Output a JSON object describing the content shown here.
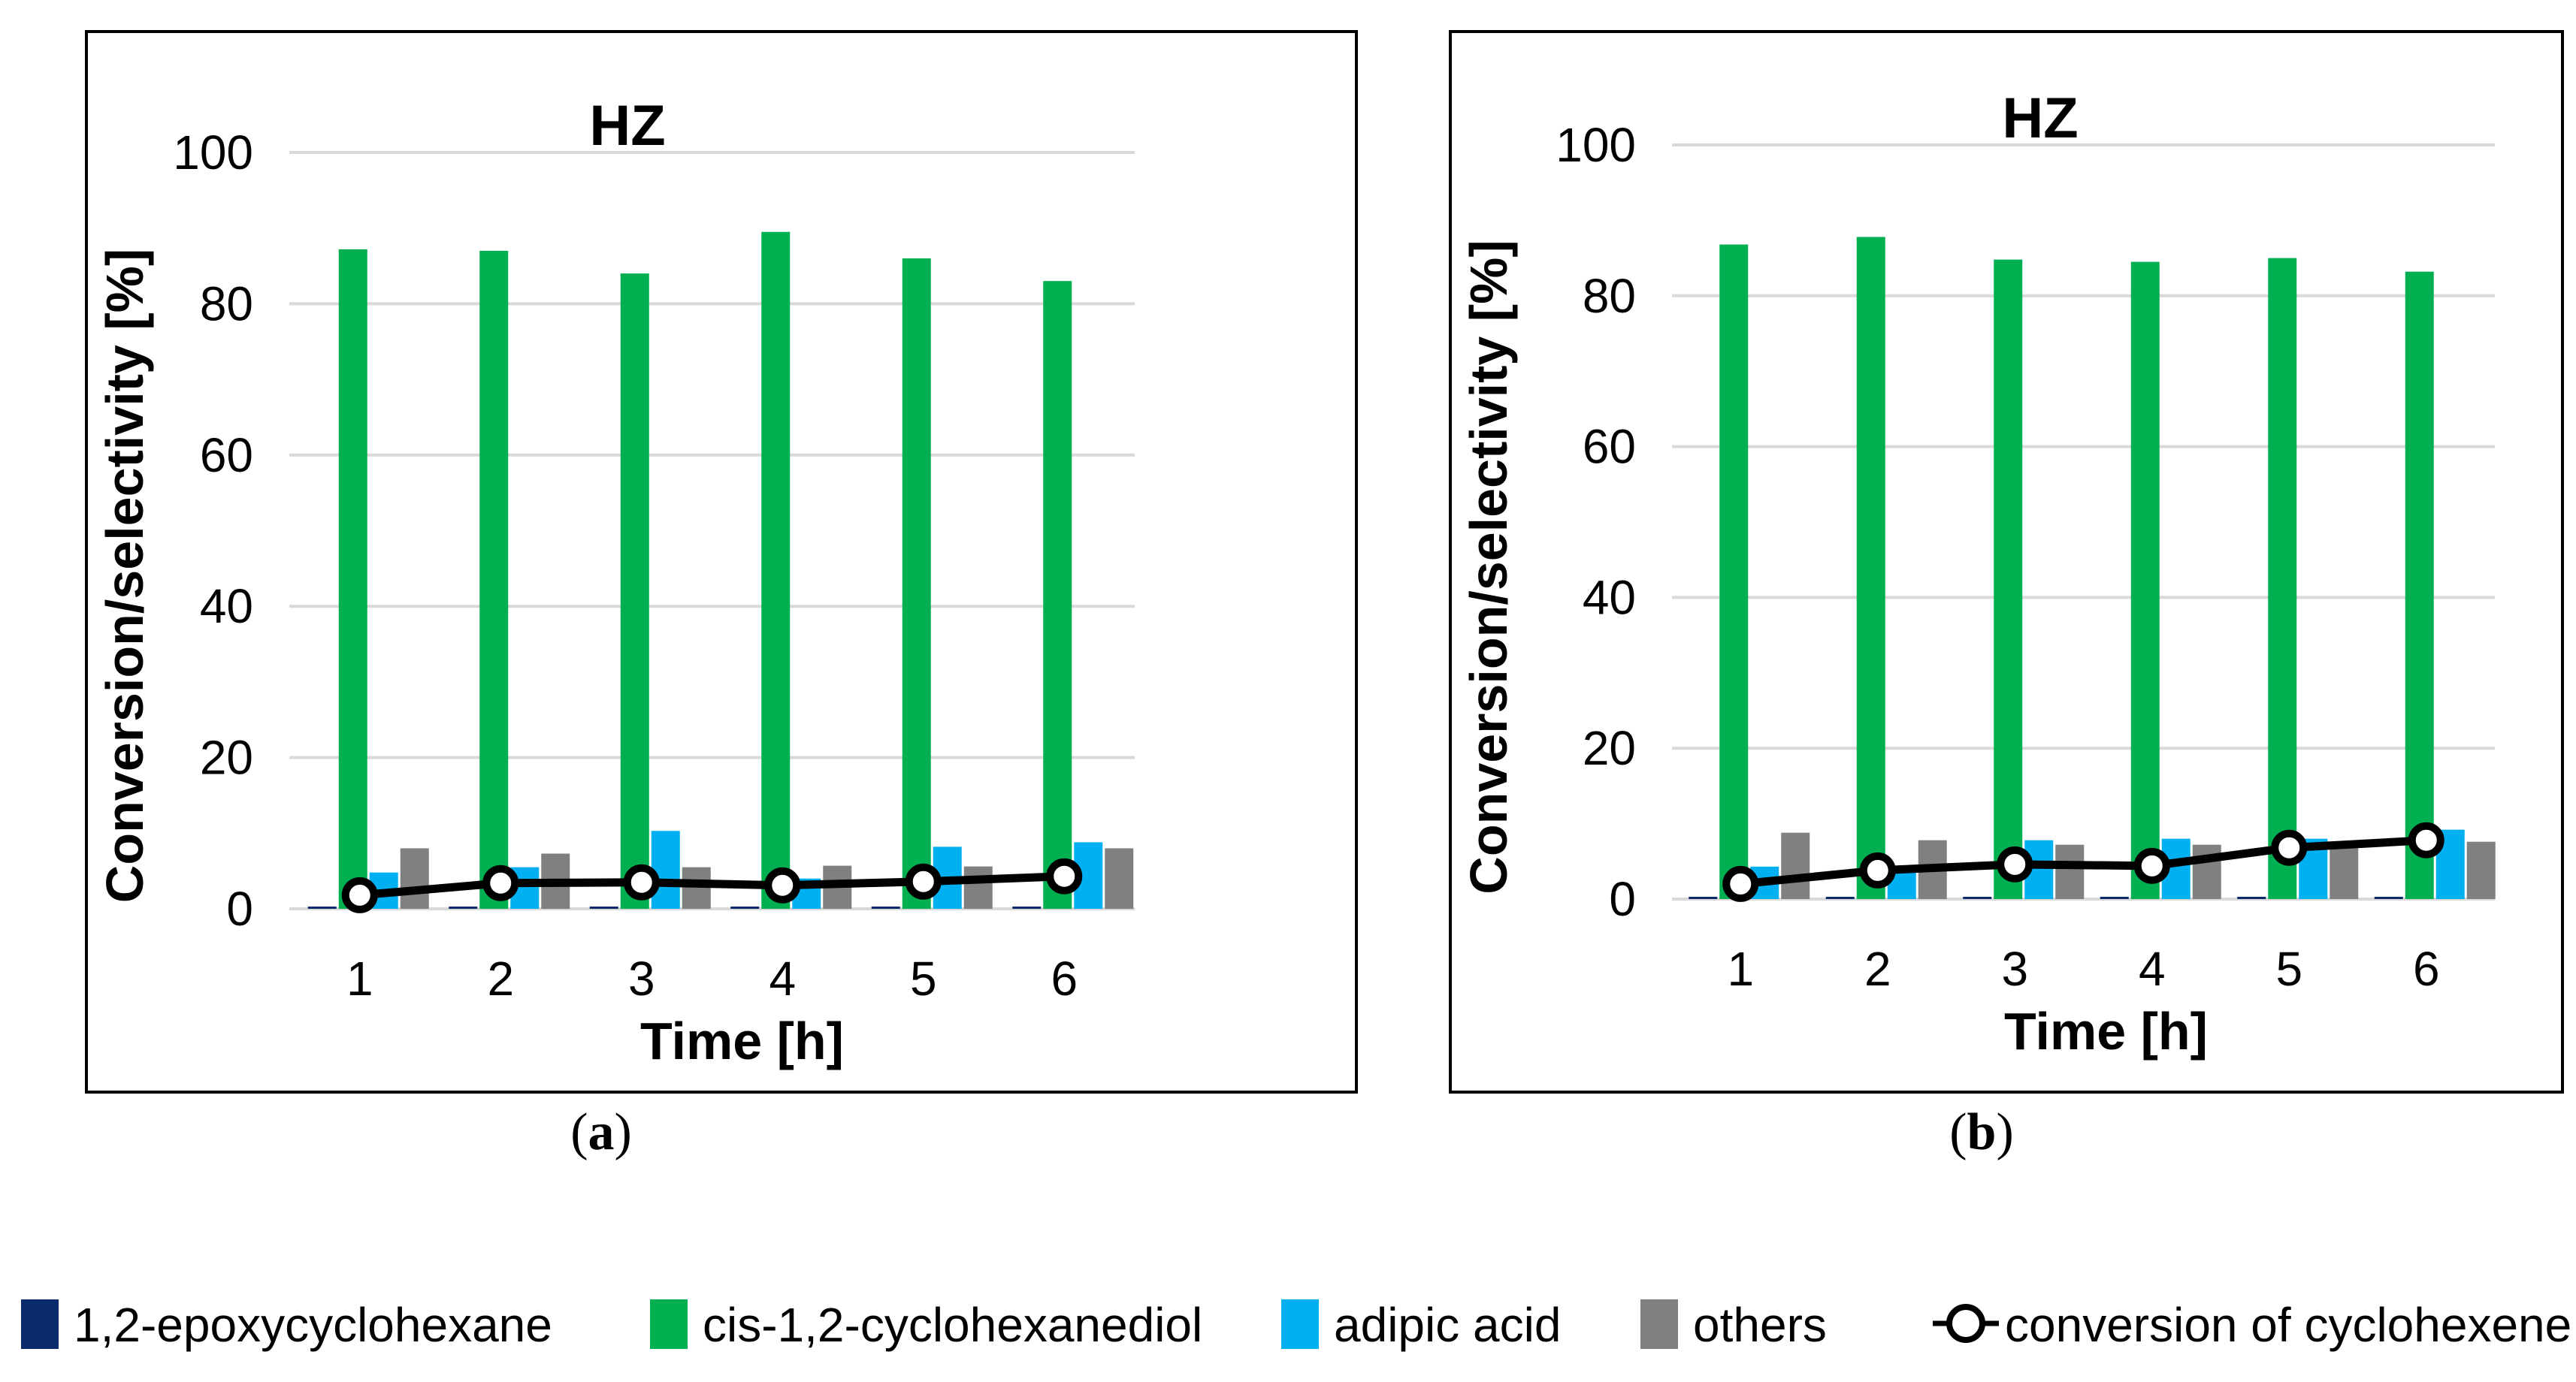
{
  "colors": {
    "1,2-epoxycyclohexane": "#0b2a6b",
    "cis-1,2-cyclohexanediol": "#00b050",
    "adipic acid": "#00b0f0",
    "others": "#808080",
    "conversion of cyclohexene": "#000000",
    "grid": "#d9d9d9"
  },
  "legend": {
    "items": [
      {
        "label": "1,2-epoxycyclohexane",
        "marker": "square"
      },
      {
        "label": "cis-1,2-cyclohexanediol",
        "marker": "square"
      },
      {
        "label": "adipic acid",
        "marker": "square"
      },
      {
        "label": "others",
        "marker": "square"
      },
      {
        "label": "conversion of cyclohexene",
        "marker": "line-circle"
      }
    ]
  },
  "chart_data": [
    {
      "type": "bar",
      "panel_label": {
        "open": "(",
        "letter": "a",
        "close": ")"
      },
      "title": "HZ",
      "xlabel": "Time [h]",
      "ylabel": "Conversion/selectivity [%]",
      "categories": [
        "1",
        "2",
        "3",
        "4",
        "5",
        "6"
      ],
      "ylim": [
        0,
        100
      ],
      "yticks": [
        "0",
        "20",
        "40",
        "60",
        "80",
        "100"
      ],
      "grid": true,
      "series": [
        {
          "name": "1,2-epoxycyclohexane",
          "kind": "bar",
          "values": [
            0.3,
            0.3,
            0.3,
            0.3,
            0.3,
            0.3
          ]
        },
        {
          "name": "cis-1,2-cyclohexanediol",
          "kind": "bar",
          "values": [
            87.2,
            87.0,
            84.0,
            89.5,
            86.0,
            83.0
          ]
        },
        {
          "name": "adipic acid",
          "kind": "bar",
          "values": [
            4.8,
            5.5,
            10.3,
            4.0,
            8.2,
            8.8
          ]
        },
        {
          "name": "others",
          "kind": "bar",
          "values": [
            8.0,
            7.3,
            5.5,
            5.7,
            5.6,
            8.0
          ]
        },
        {
          "name": "conversion of cyclohexene",
          "kind": "line",
          "values": [
            1.8,
            3.4,
            3.5,
            3.1,
            3.6,
            4.3
          ]
        }
      ]
    },
    {
      "type": "bar",
      "panel_label": {
        "open": "(",
        "letter": "b",
        "close": ")"
      },
      "title": "HZ",
      "xlabel": "Time [h]",
      "ylabel": "Conversion/selectivity [%]",
      "categories": [
        "1",
        "2",
        "3",
        "4",
        "5",
        "6"
      ],
      "ylim": [
        0,
        100
      ],
      "yticks": [
        "0",
        "20",
        "40",
        "60",
        "80",
        "100"
      ],
      "grid": true,
      "series": [
        {
          "name": "1,2-epoxycyclohexane",
          "kind": "bar",
          "values": [
            0.3,
            0.3,
            0.3,
            0.3,
            0.3,
            0.3
          ]
        },
        {
          "name": "cis-1,2-cyclohexanediol",
          "kind": "bar",
          "values": [
            86.8,
            87.8,
            84.8,
            84.5,
            85.0,
            83.2
          ]
        },
        {
          "name": "adipic acid",
          "kind": "bar",
          "values": [
            4.3,
            4.0,
            7.8,
            8.0,
            8.0,
            9.2
          ]
        },
        {
          "name": "others",
          "kind": "bar",
          "values": [
            8.8,
            7.8,
            7.2,
            7.2,
            7.2,
            7.6
          ]
        },
        {
          "name": "conversion of cyclohexene",
          "kind": "line",
          "values": [
            2.0,
            3.8,
            4.6,
            4.4,
            6.8,
            7.8
          ]
        }
      ]
    }
  ]
}
